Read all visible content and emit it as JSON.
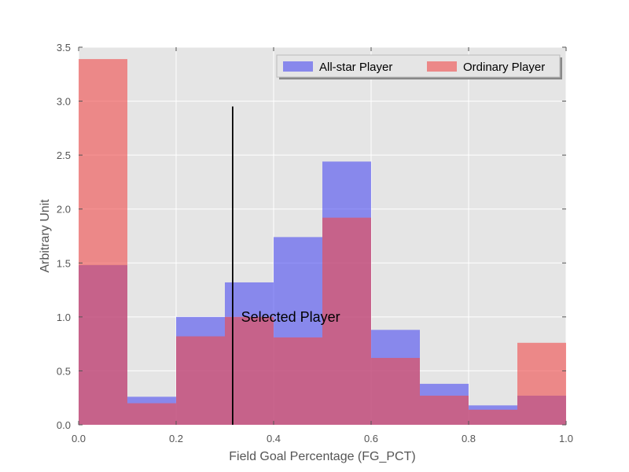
{
  "chart_data": {
    "type": "bar",
    "subtype": "overlapping-histogram",
    "xlabel": "Field Goal Percentage (FG_PCT)",
    "ylabel": "Arbitrary Unit",
    "xlim": [
      0.0,
      1.0
    ],
    "ylim": [
      0.0,
      3.5
    ],
    "xticks": [
      "0.0",
      "0.2",
      "0.4",
      "0.6",
      "0.8",
      "1.0"
    ],
    "yticks": [
      "0.0",
      "0.5",
      "1.0",
      "1.5",
      "2.0",
      "2.5",
      "3.0",
      "3.5"
    ],
    "grid": true,
    "legend_position": "top-right",
    "bin_edges": [
      0.0,
      0.1,
      0.2,
      0.3,
      0.4,
      0.5,
      0.6,
      0.7,
      0.8,
      0.9,
      1.0
    ],
    "series": [
      {
        "name": "All-star Player",
        "color": "#4a4af0",
        "values": [
          1.48,
          0.26,
          1.0,
          1.32,
          1.74,
          2.44,
          0.88,
          0.38,
          0.18,
          0.27
        ]
      },
      {
        "name": "Ordinary Player",
        "color": "#f04a4a",
        "values": [
          3.39,
          0.2,
          0.82,
          1.0,
          0.81,
          1.92,
          0.62,
          0.27,
          0.14,
          0.76
        ]
      }
    ],
    "vertical_line": {
      "x": 0.316,
      "y_top": 2.95
    },
    "annotation": {
      "text": "Selected Player",
      "x": 0.33,
      "y": 1.0
    }
  }
}
